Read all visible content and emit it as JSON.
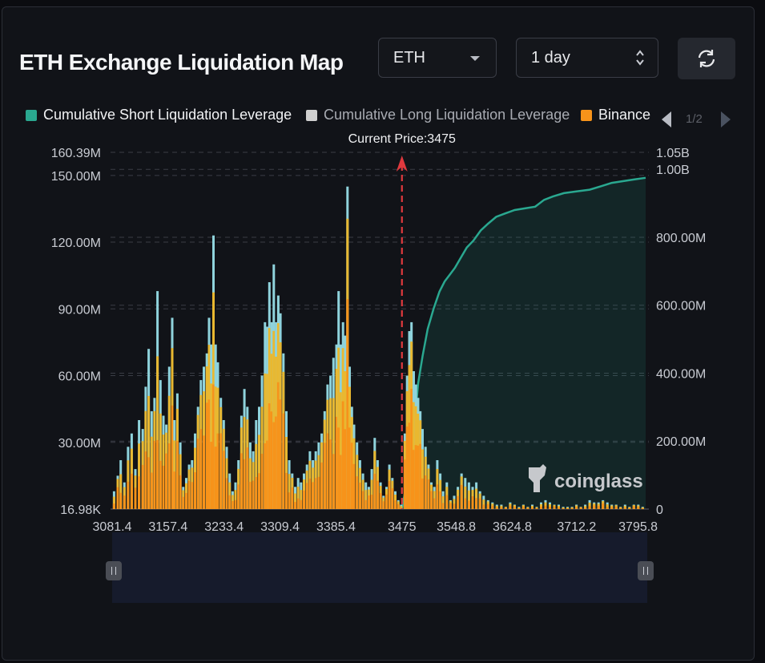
{
  "header": {
    "title": "ETH Exchange Liquidation Map",
    "coin_select": "ETH",
    "range_select": "1 day"
  },
  "legend": {
    "items": [
      {
        "label": "Cumulative Short Liquidation Leverage",
        "color": "#2aa890"
      },
      {
        "label": "Cumulative Long Liquidation Leverage",
        "color": "#cfcfcf"
      },
      {
        "label": "Binance",
        "color": "#f7931a"
      }
    ],
    "page": "1/2"
  },
  "watermark": "coinglass",
  "chart_data": {
    "type": "bar",
    "current_price_label": "Current Price:3475",
    "current_price": 3475,
    "x_ticks": [
      "3081.4",
      "3157.4",
      "3233.4",
      "3309.4",
      "3385.4",
      "3475",
      "3548.8",
      "3624.8",
      "3712.2",
      "3795.8"
    ],
    "x_tick_values": [
      3081.4,
      3157.4,
      3233.4,
      3309.4,
      3385.4,
      3475,
      3548.8,
      3624.8,
      3712.2,
      3795.8
    ],
    "xlim": [
      3081.4,
      3806
    ],
    "y_left_ticks": [
      "160.39M",
      "150.00M",
      "120.00M",
      "90.00M",
      "60.00M",
      "30.00M",
      "16.98K"
    ],
    "y_left_tick_values": [
      160.39,
      150,
      120,
      90,
      60,
      30,
      0
    ],
    "ylim_left": [
      0,
      160.39
    ],
    "y_right_ticks": [
      "1.05B",
      "1.00B",
      "800.00M",
      "600.00M",
      "400.00M",
      "200.00M",
      "0"
    ],
    "y_right_tick_values": [
      1.05,
      1.0,
      0.8,
      0.6,
      0.4,
      0.2,
      0
    ],
    "ylim_right": [
      0,
      1.05
    ],
    "series": [
      {
        "name": "Cumulative Short Liquidation Leverage",
        "kind": "area",
        "color": "#2aa890",
        "points": [
          [
            3475,
            0
          ],
          [
            3480,
            0.06
          ],
          [
            3486,
            0.13
          ],
          [
            3492,
            0.25
          ],
          [
            3497,
            0.37
          ],
          [
            3503,
            0.45
          ],
          [
            3510,
            0.53
          ],
          [
            3518,
            0.59
          ],
          [
            3526,
            0.64
          ],
          [
            3533,
            0.67
          ],
          [
            3540,
            0.69
          ],
          [
            3547,
            0.71
          ],
          [
            3555,
            0.74
          ],
          [
            3563,
            0.77
          ],
          [
            3572,
            0.79
          ],
          [
            3582,
            0.82
          ],
          [
            3592,
            0.84
          ],
          [
            3603,
            0.86
          ],
          [
            3615,
            0.87
          ],
          [
            3628,
            0.88
          ],
          [
            3642,
            0.885
          ],
          [
            3656,
            0.89
          ],
          [
            3668,
            0.91
          ],
          [
            3680,
            0.92
          ],
          [
            3695,
            0.93
          ],
          [
            3712,
            0.935
          ],
          [
            3730,
            0.94
          ],
          [
            3745,
            0.95
          ],
          [
            3760,
            0.96
          ],
          [
            3775,
            0.965
          ],
          [
            3790,
            0.97
          ],
          [
            3806,
            0.975
          ]
        ]
      },
      {
        "name": "Cumulative Long Liquidation Leverage",
        "kind": "bar-overlay",
        "color": "#8fd3dc",
        "points": [
          [
            3084,
            8
          ],
          [
            3089,
            15
          ],
          [
            3093,
            22
          ],
          [
            3098,
            12
          ],
          [
            3103,
            28
          ],
          [
            3108,
            34
          ],
          [
            3113,
            18
          ],
          [
            3118,
            40
          ],
          [
            3123,
            36
          ],
          [
            3127,
            55
          ],
          [
            3131,
            72
          ],
          [
            3135,
            44
          ],
          [
            3139,
            50
          ],
          [
            3143,
            98
          ],
          [
            3147,
            58
          ],
          [
            3151,
            42
          ],
          [
            3155,
            38
          ],
          [
            3159,
            64
          ],
          [
            3163,
            86
          ],
          [
            3166,
            40
          ],
          [
            3170,
            52
          ],
          [
            3174,
            30
          ],
          [
            3178,
            10
          ],
          [
            3182,
            14
          ],
          [
            3186,
            20
          ],
          [
            3190,
            22
          ],
          [
            3194,
            34
          ],
          [
            3198,
            46
          ],
          [
            3202,
            58
          ],
          [
            3206,
            64
          ],
          [
            3210,
            70
          ],
          [
            3213,
            86
          ],
          [
            3216,
            74
          ],
          [
            3219,
            123
          ],
          [
            3222,
            74
          ],
          [
            3225,
            66
          ],
          [
            3229,
            50
          ],
          [
            3233,
            40
          ],
          [
            3237,
            28
          ],
          [
            3241,
            16
          ],
          [
            3245,
            8
          ],
          [
            3249,
            12
          ],
          [
            3253,
            22
          ],
          [
            3257,
            42
          ],
          [
            3261,
            54
          ],
          [
            3265,
            46
          ],
          [
            3269,
            30
          ],
          [
            3273,
            26
          ],
          [
            3277,
            40
          ],
          [
            3281,
            46
          ],
          [
            3285,
            60
          ],
          [
            3289,
            84
          ],
          [
            3292,
            82
          ],
          [
            3295,
            102
          ],
          [
            3298,
            84
          ],
          [
            3301,
            110
          ],
          [
            3304,
            84
          ],
          [
            3307,
            96
          ],
          [
            3310,
            88
          ],
          [
            3314,
            70
          ],
          [
            3318,
            44
          ],
          [
            3322,
            22
          ],
          [
            3326,
            16
          ],
          [
            3330,
            10
          ],
          [
            3334,
            14
          ],
          [
            3338,
            12
          ],
          [
            3342,
            16
          ],
          [
            3346,
            20
          ],
          [
            3350,
            26
          ],
          [
            3354,
            22
          ],
          [
            3358,
            26
          ],
          [
            3362,
            30
          ],
          [
            3366,
            34
          ],
          [
            3370,
            44
          ],
          [
            3374,
            56
          ],
          [
            3378,
            60
          ],
          [
            3382,
            68
          ],
          [
            3386,
            74
          ],
          [
            3389,
            98
          ],
          [
            3392,
            74
          ],
          [
            3395,
            84
          ],
          [
            3398,
            78
          ],
          [
            3401,
            145
          ],
          [
            3404,
            64
          ],
          [
            3407,
            46
          ],
          [
            3410,
            38
          ],
          [
            3414,
            30
          ],
          [
            3418,
            22
          ],
          [
            3422,
            16
          ],
          [
            3426,
            12
          ],
          [
            3430,
            10
          ],
          [
            3434,
            18
          ],
          [
            3438,
            32
          ],
          [
            3442,
            22
          ],
          [
            3446,
            12
          ],
          [
            3450,
            6
          ],
          [
            3454,
            10
          ],
          [
            3458,
            20
          ],
          [
            3462,
            14
          ],
          [
            3466,
            8
          ],
          [
            3470,
            4
          ],
          [
            3474,
            2
          ],
          [
            3479,
            34
          ],
          [
            3482,
            60
          ],
          [
            3485,
            80
          ],
          [
            3488,
            84
          ],
          [
            3491,
            62
          ],
          [
            3494,
            56
          ],
          [
            3497,
            50
          ],
          [
            3500,
            44
          ],
          [
            3503,
            36
          ],
          [
            3507,
            28
          ],
          [
            3511,
            20
          ],
          [
            3515,
            12
          ],
          [
            3519,
            10
          ],
          [
            3523,
            22
          ],
          [
            3527,
            16
          ],
          [
            3531,
            8
          ],
          [
            3536,
            12
          ],
          [
            3541,
            4
          ],
          [
            3546,
            6
          ],
          [
            3551,
            10
          ],
          [
            3556,
            16
          ],
          [
            3561,
            14
          ],
          [
            3566,
            12
          ],
          [
            3571,
            10
          ],
          [
            3576,
            12
          ],
          [
            3581,
            8
          ],
          [
            3586,
            6
          ],
          [
            3592,
            4
          ],
          [
            3598,
            3
          ],
          [
            3604,
            2
          ],
          [
            3610,
            2
          ],
          [
            3616,
            1
          ],
          [
            3622,
            3
          ],
          [
            3628,
            2
          ],
          [
            3634,
            1
          ],
          [
            3640,
            2
          ],
          [
            3646,
            1
          ],
          [
            3652,
            2
          ],
          [
            3658,
            1
          ],
          [
            3664,
            3
          ],
          [
            3670,
            4
          ],
          [
            3676,
            3
          ],
          [
            3682,
            2
          ],
          [
            3688,
            2
          ],
          [
            3694,
            1
          ],
          [
            3700,
            1
          ],
          [
            3706,
            1
          ],
          [
            3712,
            2
          ],
          [
            3718,
            1
          ],
          [
            3724,
            2
          ],
          [
            3730,
            4
          ],
          [
            3736,
            3
          ],
          [
            3742,
            3
          ],
          [
            3748,
            4
          ],
          [
            3754,
            3
          ],
          [
            3760,
            2
          ],
          [
            3766,
            2
          ],
          [
            3772,
            1
          ],
          [
            3778,
            2
          ],
          [
            3784,
            1
          ],
          [
            3790,
            2
          ],
          [
            3796,
            2
          ],
          [
            3802,
            1
          ]
        ]
      }
    ],
    "grid": "dashed-horizontal",
    "legend_position": "top"
  }
}
